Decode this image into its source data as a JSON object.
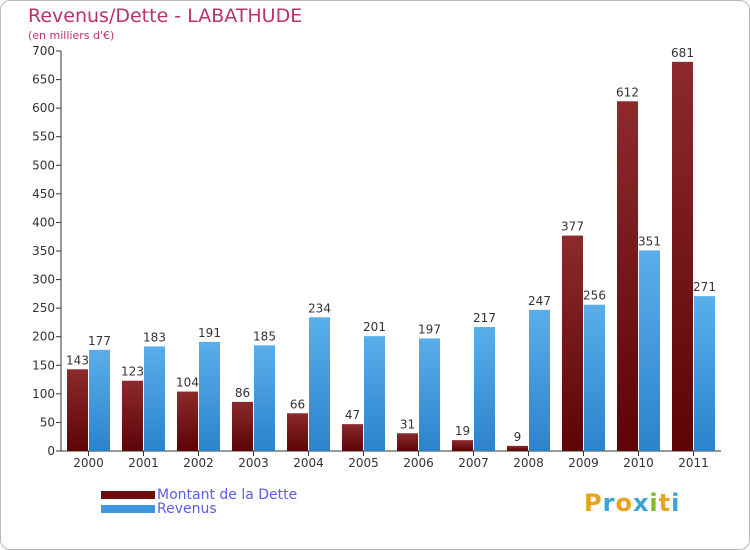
{
  "header": {
    "title": "Revenus/Dette - LABATHUDE",
    "subtitle": "(en milliers d'€)"
  },
  "colors": {
    "debt": "#7a1416",
    "revenue": "#4aa0e3",
    "title": "#b5336e",
    "legend_text": "#5a5ee6"
  },
  "legend": {
    "placement": "bottom-left",
    "items": [
      {
        "label": "Montant de la Dette",
        "color": "#6b0c0e"
      },
      {
        "label": "Revenus",
        "color": "#3d97e0"
      }
    ]
  },
  "logo": {
    "text": "Proxiti",
    "letter_colors": [
      "#e8a21f",
      "#3ba3d8",
      "#e8a21f",
      "#3ba3d8",
      "#86b82f",
      "#e8a21f",
      "#3ba3d8"
    ]
  },
  "chart_data": {
    "type": "bar",
    "categories": [
      "2000",
      "2001",
      "2002",
      "2003",
      "2004",
      "2005",
      "2006",
      "2007",
      "2008",
      "2009",
      "2010",
      "2011"
    ],
    "series": [
      {
        "name": "Montant de la Dette",
        "values": [
          143,
          123,
          104,
          86,
          66,
          47,
          31,
          19,
          9,
          377,
          612,
          681
        ]
      },
      {
        "name": "Revenus",
        "values": [
          177,
          183,
          191,
          185,
          234,
          201,
          197,
          217,
          247,
          256,
          351,
          271
        ]
      }
    ],
    "yticks": [
      0,
      50,
      100,
      150,
      200,
      250,
      300,
      350,
      400,
      450,
      500,
      550,
      600,
      650,
      700
    ],
    "ylim": [
      0,
      700
    ],
    "grid": false
  }
}
